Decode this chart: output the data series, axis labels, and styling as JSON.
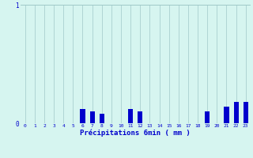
{
  "xlabel": "Précipitations 6min ( mm )",
  "background_color": "#d6f5f0",
  "bar_color": "#0000cc",
  "grid_color": "#a0c8c8",
  "text_color": "#0000cc",
  "xlim": [
    -0.5,
    23.5
  ],
  "ylim": [
    0,
    1.0
  ],
  "yticks": [
    0,
    1
  ],
  "xticks": [
    0,
    1,
    2,
    3,
    4,
    5,
    6,
    7,
    8,
    9,
    10,
    11,
    12,
    13,
    14,
    15,
    16,
    17,
    18,
    19,
    20,
    21,
    22,
    23
  ],
  "values": [
    0,
    0,
    0,
    0,
    0,
    0,
    0.12,
    0.1,
    0.08,
    0,
    0,
    0.12,
    0.1,
    0,
    0,
    0,
    0,
    0,
    0,
    0.1,
    0,
    0.14,
    0.18,
    0.18
  ],
  "bar_width": 0.5
}
